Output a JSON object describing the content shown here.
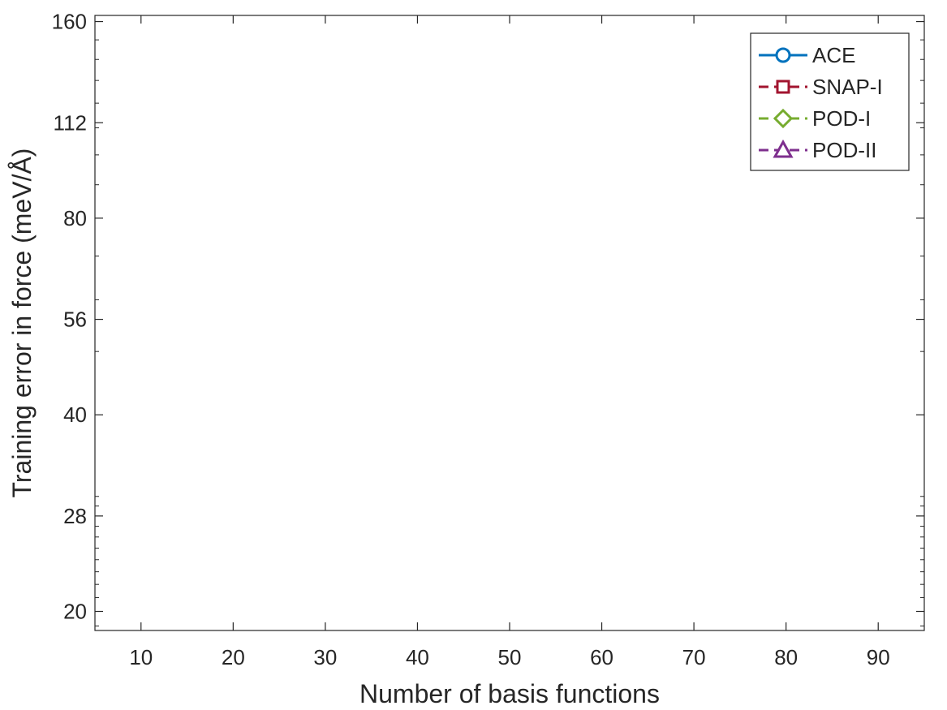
{
  "chart_data": {
    "type": "line",
    "title": "",
    "xlabel": "Number of basis functions",
    "ylabel": "Training error in force (meV/Å)",
    "xlim": [
      5,
      95
    ],
    "ylim": [
      18.7,
      163.5
    ],
    "yscale": "log",
    "x_ticks": [
      10,
      20,
      30,
      40,
      50,
      60,
      70,
      80,
      90
    ],
    "x_tick_labels": [
      "10",
      "20",
      "30",
      "40",
      "50",
      "60",
      "70",
      "80",
      "90"
    ],
    "y_ticks": [
      20,
      28,
      40,
      56,
      80,
      112,
      160
    ],
    "y_tick_labels": [
      "20",
      "28",
      "40",
      "56",
      "80",
      "112",
      "160"
    ],
    "grid": false,
    "legend_position": "top-right",
    "series": [
      {
        "name": "ACE",
        "color": "#0072BD",
        "line_style": "solid",
        "marker": "circle",
        "x": [],
        "y": []
      },
      {
        "name": "SNAP-I",
        "color": "#A2142F",
        "line_style": "dashed",
        "marker": "square",
        "x": [],
        "y": []
      },
      {
        "name": "POD-I",
        "color": "#77AC30",
        "line_style": "dashed",
        "marker": "diamond",
        "x": [],
        "y": []
      },
      {
        "name": "POD-II",
        "color": "#7E2F8E",
        "line_style": "dashed",
        "marker": "triangle",
        "x": [],
        "y": []
      }
    ]
  }
}
